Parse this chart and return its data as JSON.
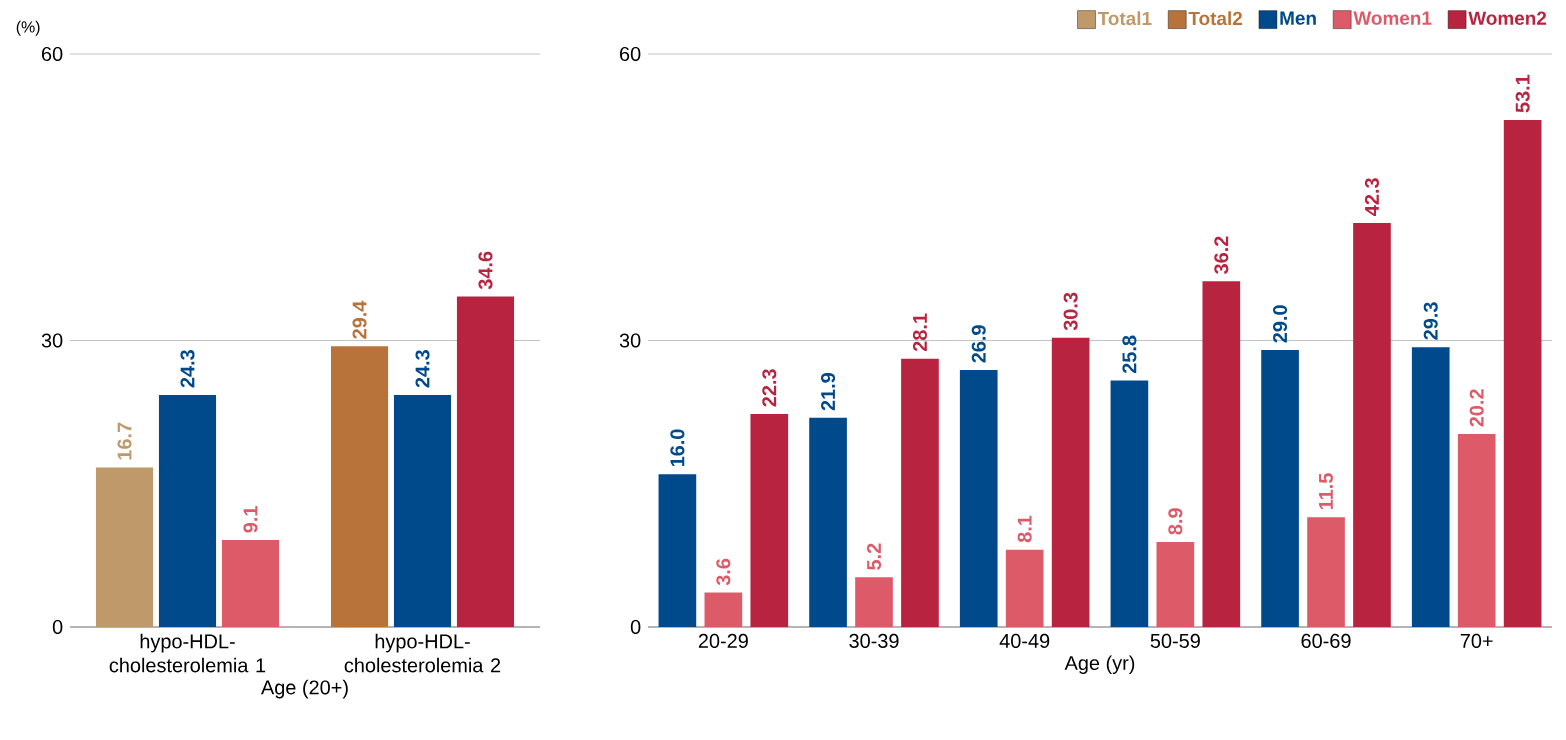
{
  "chart_data": [
    {
      "type": "bar",
      "ylabel": "(%)",
      "xlabel": "Age (20+)",
      "categories": [
        "hypo-HDL-cholesterolemia 1",
        "hypo-HDL-cholesterolemia 2"
      ],
      "ylim": [
        0,
        60
      ],
      "yticks": [
        0,
        30,
        60
      ],
      "grid": "y",
      "legend": "top right",
      "series": [
        {
          "name": "Total1",
          "color": "#c0996a",
          "values": [
            16.7,
            null
          ],
          "value_labels": [
            "16.7",
            null
          ]
        },
        {
          "name": "Total2",
          "color": "#b8733a",
          "values": [
            null,
            29.4
          ],
          "value_labels": [
            null,
            "29.4"
          ]
        },
        {
          "name": "Men",
          "color": "#004a8c",
          "values": [
            24.3,
            24.3
          ],
          "value_labels": [
            "24.3",
            "24.3"
          ]
        },
        {
          "name": "Women1",
          "color": "#dd5a68",
          "values": [
            9.1,
            null
          ],
          "value_labels": [
            "9.1",
            null
          ]
        },
        {
          "name": "Women2",
          "color": "#b8243f",
          "values": [
            null,
            34.6
          ],
          "value_labels": [
            null,
            "34.6"
          ]
        }
      ]
    },
    {
      "type": "bar",
      "xlabel": "Age (yr)",
      "categories": [
        "20-29",
        "30-39",
        "40-49",
        "50-59",
        "60-69",
        "70+"
      ],
      "ylim": [
        0,
        60
      ],
      "yticks": [
        0,
        30,
        60
      ],
      "grid": "y",
      "series": [
        {
          "color": "#004a8c",
          "values": [
            16.0,
            21.9,
            26.9,
            25.8,
            29.0,
            29.3
          ],
          "value_labels": [
            "16.0",
            "21.9",
            "26.9",
            "25.8",
            "29.0",
            "29.3"
          ]
        },
        {
          "color": "#dd5a68",
          "values": [
            3.6,
            5.2,
            8.1,
            8.9,
            11.5,
            20.2
          ],
          "value_labels": [
            "3.6",
            "5.2",
            "8.1",
            "8.9",
            "11.5",
            "20.2"
          ]
        },
        {
          "color": "#b8243f",
          "values": [
            22.3,
            28.1,
            30.3,
            36.2,
            42.3,
            53.1
          ],
          "value_labels": [
            "22.3",
            "28.1",
            "30.3",
            "36.2",
            "42.3",
            "53.1"
          ]
        }
      ]
    }
  ]
}
